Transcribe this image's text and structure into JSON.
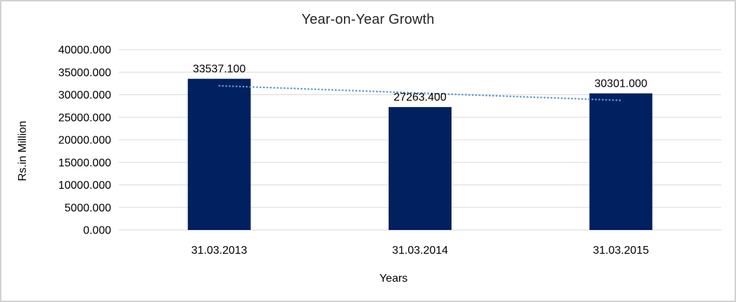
{
  "chart_data": {
    "type": "bar",
    "title": "Year-on-Year Growth",
    "xlabel": "Years",
    "ylabel": "Rs.in Million",
    "categories": [
      "31.03.2013",
      "31.03.2014",
      "31.03.2015"
    ],
    "values": [
      33537.1,
      27263.4,
      30301.0
    ],
    "data_labels": [
      "33537.100",
      "27263.400",
      "30301.000"
    ],
    "ylim": [
      0,
      40000
    ],
    "y_tick_interval": 5000,
    "y_tick_labels": [
      "40000.000",
      "35000.000",
      "30000.000",
      "25000.000",
      "20000.000",
      "15000.000",
      "10000.000",
      "5000.000",
      "0.000"
    ],
    "grid": true,
    "legend": "none",
    "bar_color": "#002060",
    "gridline_color": "#d9d9d9",
    "text_color": "#000000",
    "trendline": {
      "type": "linear",
      "style": "dotted",
      "color": "#5b9bd5"
    }
  }
}
